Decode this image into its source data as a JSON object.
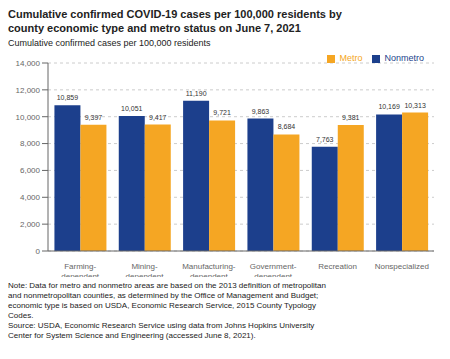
{
  "chart_data": {
    "type": "bar",
    "title": "Cumulative confirmed COVID-19 cases per 100,000 residents by\ncounty economic type and metro status on June 7, 2021",
    "subtitle": "Cumulative confirmed cases per 100,000 residents",
    "categories": [
      "Farming-\ndependent",
      "Mining-\ndependent",
      "Manufacturing-\ndependent",
      "Government-\ndependent",
      "Recreation",
      "Nonspecialized"
    ],
    "series": [
      {
        "name": "Nonmetro",
        "color": "#1c3f8c",
        "values": [
          10859,
          10051,
          11190,
          9863,
          7763,
          10169
        ],
        "value_labels": [
          "10,859",
          "10,051",
          "11,190",
          "9,863",
          "7,763",
          "10,169"
        ]
      },
      {
        "name": "Metro",
        "color": "#f5a623",
        "values": [
          9397,
          9417,
          9721,
          8684,
          9381,
          10313
        ],
        "value_labels": [
          "9,397",
          "9,417",
          "9,721",
          "8,684",
          "9,381",
          "10,313"
        ]
      }
    ],
    "ylim": [
      0,
      14000
    ],
    "yticks": [
      0,
      {
        "value": 2000,
        "label": "2,000"
      },
      {
        "value": 4000,
        "label": "4,000"
      },
      {
        "value": 6000,
        "label": "6,000"
      },
      {
        "value": 8000,
        "label": "8,000"
      },
      {
        "value": 10000,
        "label": "10,000"
      },
      {
        "value": 12000,
        "label": "12,000"
      },
      {
        "value": 14000,
        "label": "14,000"
      }
    ],
    "grid": true,
    "legend": "upper right",
    "data_labels": true,
    "annotations": [
      "Note: Data for metro and nonmetro areas are based on the 2013 definition of metropolitan",
      "and nonmetropolitan counties, as determined by the Office of Management and Budget;",
      "economic type is based on USDA, Economic Research Service, 2015 County Typology",
      "Codes.",
      "Source: USDA, Economic Research Service using data from Johns Hopkins University",
      "Center for System Science and Engineering (accessed June 8, 2021)."
    ]
  }
}
